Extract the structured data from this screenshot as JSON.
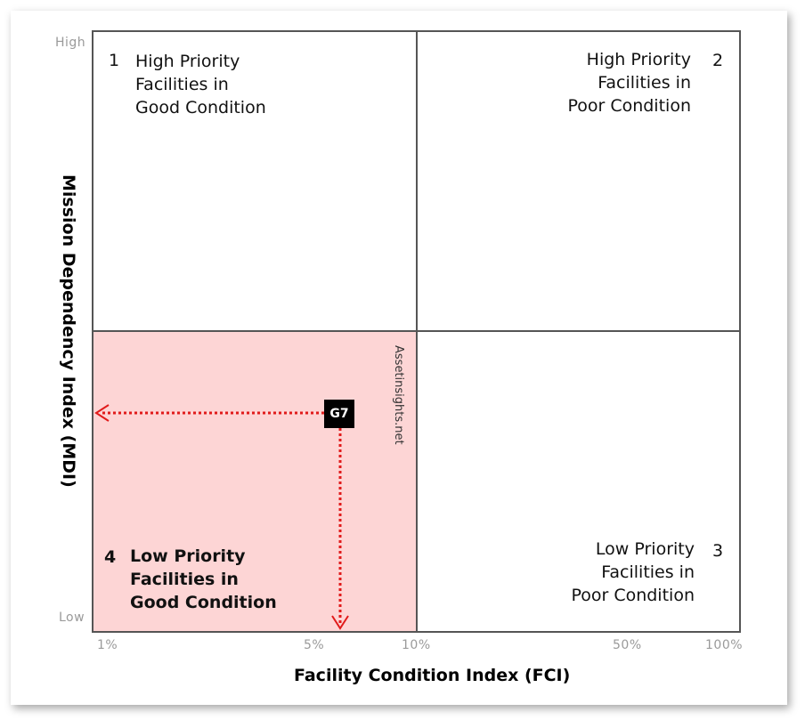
{
  "axes": {
    "y_title": "Mission Dependency Index (MDI)",
    "y_high": "High",
    "y_low": "Low",
    "x_title": "Facility Condition Index (FCI)",
    "x_ticks": [
      "1%",
      "5%",
      "10%",
      "50%",
      "100%"
    ]
  },
  "quadrants": [
    {
      "num": "1",
      "lines": [
        "High Priority",
        "Facilities in",
        "Good Condition"
      ]
    },
    {
      "num": "2",
      "lines": [
        "High Priority",
        "Facilities in",
        "Poor Condition"
      ]
    },
    {
      "num": "3",
      "lines": [
        "Low Priority",
        "Facilities in",
        "Poor Condition"
      ]
    },
    {
      "num": "4",
      "lines": [
        "Low Priority",
        "Facilities in",
        "Good Condition"
      ]
    }
  ],
  "marker": {
    "label": "G7"
  },
  "watermark": "Assetinsights.net",
  "colors": {
    "highlight": "#fdd5d5",
    "arrow": "#e11b1b",
    "grid": "#555555"
  }
}
